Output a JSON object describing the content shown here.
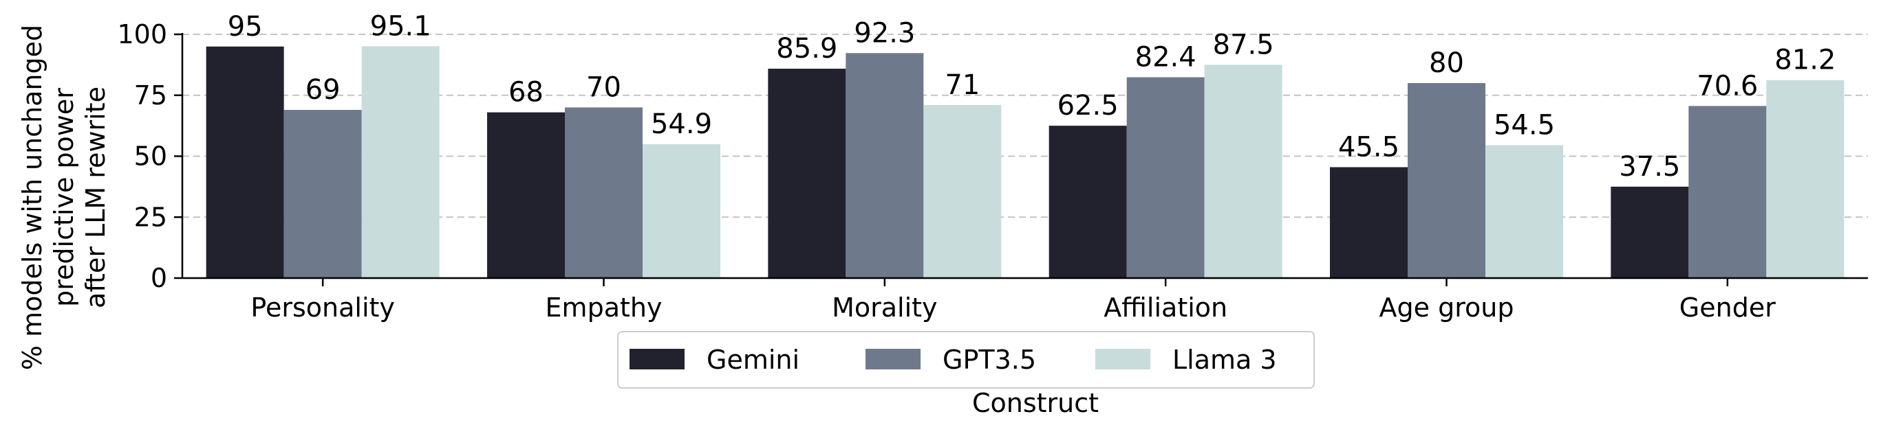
{
  "chart_data": {
    "type": "bar",
    "categories": [
      "Personality",
      "Empathy",
      "Morality",
      "Affiliation",
      "Age group",
      "Gender"
    ],
    "series": [
      {
        "name": "Gemini",
        "values": [
          95,
          68,
          85.9,
          62.5,
          45.5,
          37.5
        ],
        "color": "#22222e"
      },
      {
        "name": "GPT3.5",
        "values": [
          69,
          70,
          92.3,
          82.4,
          80,
          70.6
        ],
        "color": "#6e798c"
      },
      {
        "name": "Llama 3",
        "values": [
          95.1,
          54.9,
          71,
          87.5,
          54.5,
          81.2
        ],
        "color": "#c8dddb"
      }
    ],
    "value_labels": [
      [
        "95",
        "68",
        "85.9",
        "62.5",
        "45.5",
        "37.5"
      ],
      [
        "69",
        "70",
        "92.3",
        "82.4",
        "80",
        "70.6"
      ],
      [
        "95.1",
        "54.9",
        "71",
        "87.5",
        "54.5",
        "81.2"
      ]
    ],
    "title": "",
    "xlabel": "Construct",
    "ylabel_lines": [
      "% models with unchanged",
      "predictive power",
      "after LLM rewrite"
    ],
    "ylim": [
      0,
      100
    ],
    "yticks": [
      0,
      25,
      50,
      75,
      100
    ],
    "grid": "horizontal-dashed",
    "legend_position": "bottom-center"
  }
}
